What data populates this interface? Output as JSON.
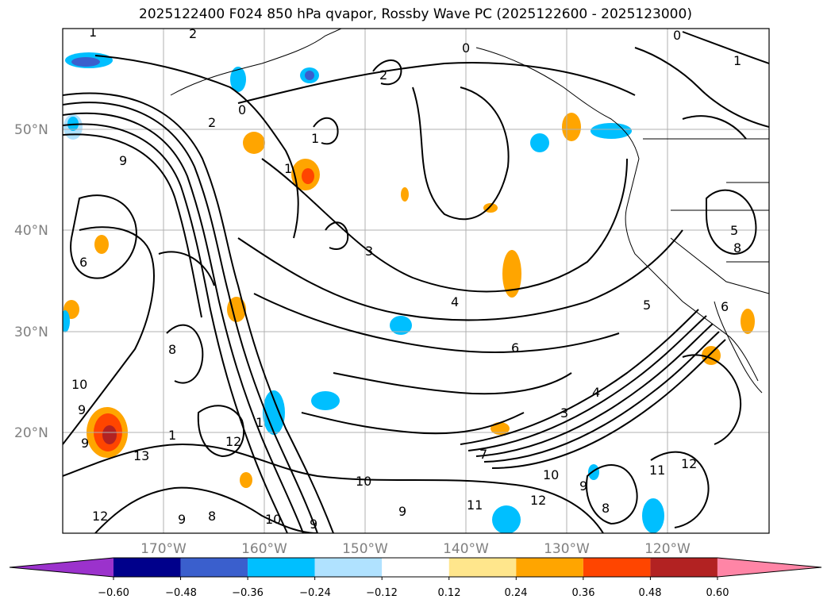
{
  "title": "2025122400 F024 850 hPa qvapor, Rossby Wave PC (2025122600 - 2025123000)",
  "map": {
    "lat_labels": [
      "50°N",
      "40°N",
      "30°N",
      "20°N"
    ],
    "lon_labels": [
      "170°W",
      "160°W",
      "150°W",
      "140°W",
      "130°W",
      "120°W"
    ],
    "gridlines": true
  },
  "contour_labels": [
    "1",
    "2",
    "2",
    "0",
    "0",
    "1",
    "9",
    "1",
    "2",
    "1",
    "0",
    "3",
    "4",
    "6",
    "5",
    "6",
    "8",
    "9",
    "5",
    "6",
    "8",
    "10",
    "9",
    "13",
    "12",
    "1",
    "1",
    "9",
    "8",
    "10",
    "10",
    "9",
    "9",
    "11",
    "12",
    "12",
    "3",
    "4",
    "7",
    "10",
    "9",
    "8",
    "11",
    "12"
  ],
  "colorbar": {
    "extend": "both",
    "ticks": [
      "−0.60",
      "−0.48",
      "−0.36",
      "−0.24",
      "−0.12",
      "0.12",
      "0.24",
      "0.36",
      "0.48",
      "0.60"
    ],
    "colors": [
      "#9b32cc",
      "#00008b",
      "#3a5fcd",
      "#00bfff",
      "#b0e2ff",
      "#ffffff",
      "#ffe68c",
      "#ffa500",
      "#ff4500",
      "#b22222",
      "#ff85a6"
    ]
  }
}
